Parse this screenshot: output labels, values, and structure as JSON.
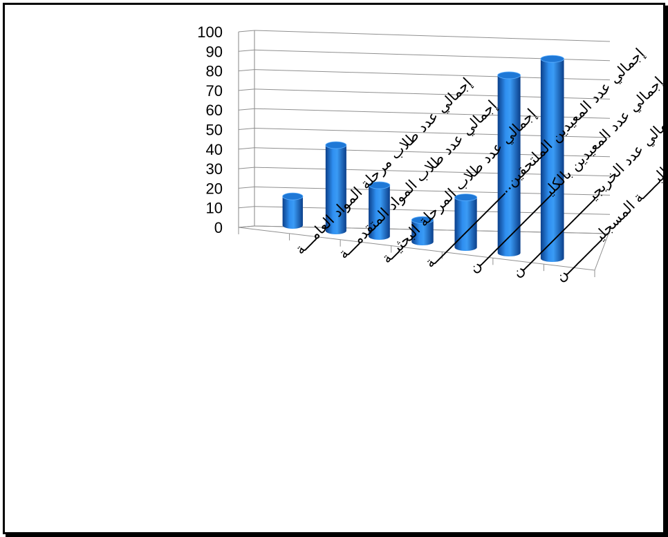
{
  "chart_data": {
    "type": "bar",
    "style": "3d-cylinder",
    "categories": [
      "إجمالي عدد طلاب مرحلة المواد العامـــة",
      "إجمالي عدد طلاب المواد المتقدمـــة",
      "إجمالي عدد طلاب المرحلة البحثيــة",
      "إجمالي عدد المعيدين الملتحقين..ـــــــــــــــــــــــة",
      "إجمالي عدد المعيدين بالكليـــــــــــــــــــــــن",
      "إجمالي عدد الخريجيـــــــــــــــــــــــن",
      "إجمالي عدد الطلبـــــة المسجليـــــــــــن"
    ],
    "values": [
      15,
      44,
      26,
      11,
      25,
      88,
      98
    ],
    "ylim": [
      0,
      100
    ],
    "yticks": [
      0,
      10,
      20,
      30,
      40,
      50,
      60,
      70,
      80,
      90,
      100
    ],
    "grid": true,
    "legend": "none",
    "bar_color": "#1f78d6"
  }
}
